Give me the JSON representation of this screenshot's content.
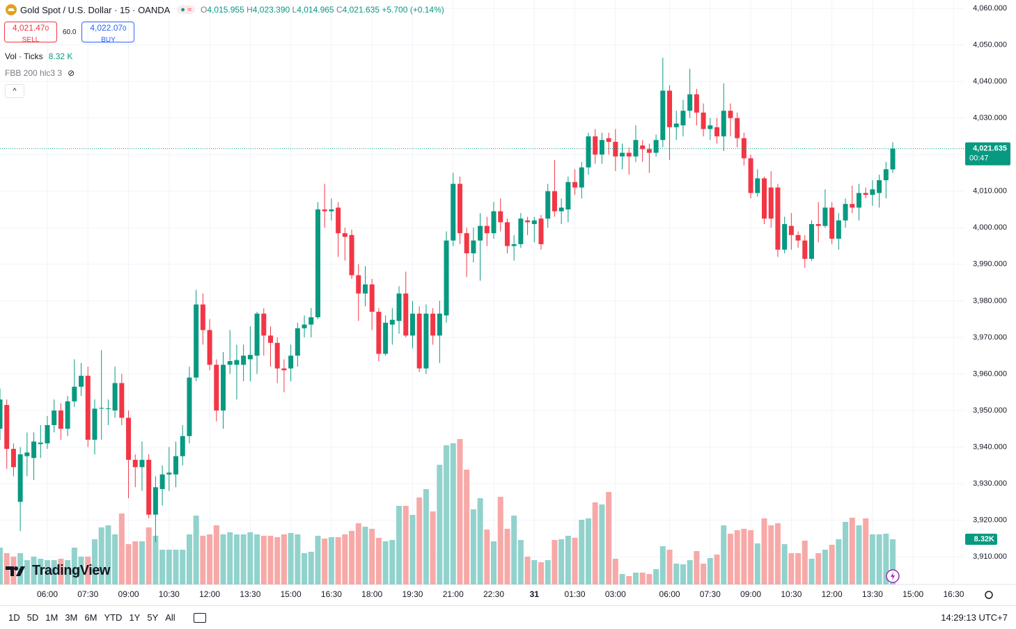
{
  "header": {
    "symbol": "Gold Spot / U.S. Dollar · 15 · OANDA",
    "ohlc": [
      {
        "label": "O",
        "value": "4,015.955"
      },
      {
        "label": "H",
        "value": "4,023.390"
      },
      {
        "label": "L",
        "value": "4,014.965"
      },
      {
        "label": "C",
        "value": "4,021.635"
      }
    ],
    "change": "+5.700 (+0.14%)",
    "sell": {
      "price": "4,021.47",
      "pip": "0",
      "label": "SELL"
    },
    "spread": "60.0",
    "buy": {
      "price": "4,022.07",
      "pip": "0",
      "label": "BUY"
    },
    "volume_indicator": {
      "name": "Vol · Ticks",
      "value": "8.32 K"
    },
    "bands_indicator": "FBB 200 hlc3 3",
    "logo": "TradingView"
  },
  "toolbar": {
    "ranges": [
      "1D",
      "5D",
      "1M",
      "3M",
      "6M",
      "YTD",
      "1Y",
      "5Y",
      "All"
    ],
    "clock": "14:29:13 UTC+7"
  },
  "chart_data": {
    "type": "candlestick",
    "up_color": "#089981",
    "down_color": "#f23645",
    "volume_up_color": "#92d2cc",
    "volume_down_color": "#f7a9a7",
    "grid": true,
    "xlim": [
      0,
      142.6
    ],
    "ylim": [
      3902.4,
      4062.3
    ],
    "xticks": [
      {
        "value": 7,
        "label": "06:00"
      },
      {
        "value": 13,
        "label": "07:30"
      },
      {
        "value": 19,
        "label": "09:00"
      },
      {
        "value": 25,
        "label": "10:30"
      },
      {
        "value": 31,
        "label": "12:00"
      },
      {
        "value": 37,
        "label": "13:30"
      },
      {
        "value": 43,
        "label": "15:00"
      },
      {
        "value": 49,
        "label": "16:30"
      },
      {
        "value": 55,
        "label": "18:00"
      },
      {
        "value": 61,
        "label": "19:30"
      },
      {
        "value": 67,
        "label": "21:00"
      },
      {
        "value": 73,
        "label": "22:30"
      },
      {
        "value": 79,
        "label": "31"
      },
      {
        "value": 85,
        "label": "01:30"
      },
      {
        "value": 91,
        "label": "03:00"
      },
      {
        "value": 99,
        "label": "06:00"
      },
      {
        "value": 105,
        "label": "07:30"
      },
      {
        "value": 111,
        "label": "09:00"
      },
      {
        "value": 117,
        "label": "10:30"
      },
      {
        "value": 123,
        "label": "12:00"
      },
      {
        "value": 129,
        "label": "13:30"
      },
      {
        "value": 135,
        "label": "15:00"
      },
      {
        "value": 141,
        "label": "16:30"
      }
    ],
    "yticks": [
      {
        "value": 3910,
        "label": "3,910.000"
      },
      {
        "value": 3920,
        "label": "3,920.000"
      },
      {
        "value": 3930,
        "label": "3,930.000"
      },
      {
        "value": 3940,
        "label": "3,940.000"
      },
      {
        "value": 3950,
        "label": "3,950.000"
      },
      {
        "value": 3960,
        "label": "3,960.000"
      },
      {
        "value": 3970,
        "label": "3,970.000"
      },
      {
        "value": 3980,
        "label": "3,980.000"
      },
      {
        "value": 3990,
        "label": "3,990.000"
      },
      {
        "value": 4000,
        "label": "4,000.000"
      },
      {
        "value": 4010,
        "label": "4,010.000"
      },
      {
        "value": 4020,
        "label": "4,020.000"
      },
      {
        "value": 4030,
        "label": "4,030.000"
      },
      {
        "value": 4040,
        "label": "4,040.000"
      },
      {
        "value": 4050,
        "label": "4,050.000"
      },
      {
        "value": 4060,
        "label": "4,060.000"
      }
    ],
    "last_price": {
      "value": 4021.635,
      "label": "4,021.635"
    },
    "countdown": "00:47",
    "volume_label": "8.32K",
    "open": [
      3945,
      3951.5,
      3939.5,
      3925,
      3937.5,
      3937,
      3940.8,
      3941,
      3946,
      3950,
      3945,
      3952.5,
      3956.5,
      3959.5,
      3942,
      3950.5,
      3950.4,
      3950,
      3957.5,
      3948,
      3936.5,
      3934.5,
      3936.5,
      3921.5,
      3928.5,
      3932.5,
      3932.5,
      3937.5,
      3943,
      3959,
      3979,
      3972,
      3962.5,
      3950,
      3962.5,
      3962.5,
      3962.5,
      3964,
      3965,
      3976.5,
      3970.5,
      3968.5,
      3961.5,
      3961.5,
      3965,
      3972.5,
      3973.5,
      3975.5,
      4005,
      4004.5,
      4005.5,
      3998.5,
      3998,
      3987,
      3982,
      3984.5,
      3977,
      3965.5,
      3973.5,
      3974.5,
      3982,
      3970.5,
      3976.5,
      3961.5,
      3976.5,
      3970.5,
      3976,
      3996.5,
      4012,
      3998.5,
      3993,
      3996.5,
      4000.5,
      3998.5,
      4004.5,
      4001.5,
      3995,
      3995.5,
      4002,
      4001,
      4002.5,
      4002.5,
      4010,
      4004.5,
      4005,
      4012.5,
      4011,
      4016.5,
      4025,
      4020,
      4024.5,
      4023.5,
      4019.5,
      4020.5,
      4019.5,
      4022.5,
      4021.5,
      4020.5,
      4024,
      4037.5,
      4027.5,
      4028,
      4032,
      4036.5,
      4031.5,
      4027,
      4027.5,
      4025,
      4032,
      4030,
      4024.5,
      4019,
      4009.5,
      4013.5,
      4011,
      4011,
      3994,
      4000.5,
      3998,
      3996.5,
      3991.5,
      4001,
      4000.5,
      4005.5,
      3997,
      4002,
      4006.5,
      4005.5,
      4009.5,
      4009,
      4009.5,
      4013,
      4015.955
    ],
    "high": [
      3956,
      3953,
      3941,
      3940,
      3944,
      3944,
      3946,
      3948.5,
      3953,
      3952,
      3954,
      3964,
      3963,
      3962,
      3953,
      3966.5,
      3953,
      3962,
      3960,
      3950,
      3938,
      3941.5,
      3938,
      3932,
      3935,
      3940,
      3941.5,
      3946,
      3962,
      3983,
      3982,
      3975,
      3964,
      3966,
      3972,
      3968,
      3968,
      3973,
      3977,
      3978,
      3973,
      3970,
      3964,
      3968,
      3974,
      3976,
      3978,
      4007,
      4012,
      4008,
      4007,
      4000,
      3999.5,
      3990,
      3989.5,
      3986,
      3978,
      3976,
      3978,
      3984,
      3988,
      3980,
      3978.5,
      3979,
      3978,
      3980,
      3999,
      4015,
      4014,
      4000,
      4000,
      4004,
      4003,
      4007,
      4008,
      4002.5,
      3998,
      4004,
      4003,
      4003,
      4003.5,
      4012,
      4018.5,
      4008,
      4014,
      4016,
      4018,
      4026,
      4027,
      4026,
      4026,
      4027,
      4023,
      4022,
      4028,
      4024,
      4023,
      4025.5,
      4046.5,
      4039,
      4032,
      4035,
      4043.5,
      4038,
      4034,
      4030,
      4030,
      4039.5,
      4034,
      4031.5,
      4026,
      4020,
      4016,
      4014,
      4015.5,
      4012,
      4003,
      4004,
      3999,
      3998,
      4002,
      4007,
      4010.5,
      4007,
      4004,
      4008,
      4011.5,
      4012,
      4011,
      4013,
      4014.5,
      4018,
      4023.39
    ],
    "low": [
      3942,
      3934,
      3932,
      3917,
      3932,
      3931,
      3937,
      3939.5,
      3944,
      3942,
      3943,
      3951,
      3954,
      3940,
      3938,
      3942,
      3946,
      3948,
      3946,
      3926,
      3929,
      3928,
      3920.5,
      3914,
      3924,
      3928,
      3929,
      3935,
      3941,
      3958,
      3968,
      3961,
      3947,
      3945,
      3960,
      3953,
      3958,
      3958,
      3960,
      3965,
      3962,
      3957.5,
      3955,
      3958,
      3962,
      3970,
      3970,
      3975,
      4000,
      4002,
      3992,
      3991,
      3986,
      3974.5,
      3978.5,
      3972,
      3963.5,
      3965,
      3968,
      3971,
      3970,
      3967,
      3960.5,
      3960,
      3968,
      3963,
      3974,
      3995,
      3995.5,
      3986.5,
      3990.5,
      3985.5,
      3995,
      3997,
      3999,
      3993,
      3991,
      3994.5,
      3998,
      3996,
      3994,
      4000,
      4003,
      4001,
      4001.5,
      4009,
      4008,
      4014.5,
      4017.5,
      4017.5,
      4020,
      4015.5,
      4016,
      4014.5,
      4018,
      4018,
      4015,
      4019.5,
      4022,
      4018.5,
      4024,
      4025,
      4030,
      4028,
      4025,
      4024,
      4023,
      4021,
      4025,
      4022,
      4017,
      4008,
      4008.5,
      4001,
      4000,
      3992,
      3993,
      3994,
      3994.5,
      3989,
      3991,
      3996,
      4000,
      3995.5,
      3994,
      4000,
      4004,
      4002,
      4008,
      4006,
      4005.5,
      4008,
      4014.965
    ],
    "close": [
      3953,
      3939.5,
      3934.5,
      3938,
      3938.5,
      3941.5,
      3941.2,
      3946,
      3950,
      3945,
      3952.5,
      3956.5,
      3959.5,
      3942,
      3950.5,
      3950.7,
      3950.6,
      3957.5,
      3948,
      3936.5,
      3934.5,
      3936.5,
      3921.5,
      3929,
      3932.5,
      3933,
      3937.5,
      3943,
      3959,
      3979,
      3972,
      3962.5,
      3950,
      3962.5,
      3963.5,
      3963.8,
      3965,
      3965.2,
      3976.5,
      3970.5,
      3968.5,
      3961.5,
      3961,
      3965,
      3972.5,
      3973.5,
      3975.5,
      4005,
      4004.5,
      4005,
      3998.5,
      3997.5,
      3987,
      3982,
      3984.5,
      3977,
      3965.5,
      3974,
      3974.8,
      3982,
      3970.5,
      3976.5,
      3961.5,
      3976.5,
      3970.5,
      3976.5,
      3996.5,
      4012,
      3998.5,
      3993,
      3996.5,
      4000.5,
      3998.5,
      4004.5,
      4001.5,
      3995,
      3995.5,
      4002.5,
      4001.5,
      4002,
      3995.5,
      4010,
      4004.5,
      4005.5,
      4012.5,
      4011,
      4016.5,
      4025,
      4020,
      4024,
      4023.5,
      4019.5,
      4020.5,
      4019.5,
      4024,
      4021.5,
      4020.5,
      4024,
      4037.5,
      4027.5,
      4028.5,
      4032,
      4036.5,
      4031.5,
      4027,
      4028,
      4025,
      4032,
      4030,
      4024.5,
      4019,
      4009.5,
      4013.5,
      4002.5,
      4002.5,
      3994,
      4001,
      3998,
      3996.5,
      3991.5,
      4001,
      4000.5,
      4005.5,
      3997,
      4002,
      4006.5,
      4005.5,
      4009.5,
      4009,
      4010.5,
      4013,
      4016,
      4021.635
    ],
    "volume": [
      6.78,
      5.76,
      5.12,
      5.76,
      4.48,
      5.12,
      4.74,
      4.48,
      4.48,
      4.74,
      4.48,
      6.78,
      5.12,
      5.12,
      8.32,
      10.5,
      10.88,
      9.22,
      13.06,
      7.42,
      7.94,
      7.94,
      10.5,
      8.96,
      6.4,
      6.4,
      6.4,
      6.4,
      9.22,
      12.67,
      8.96,
      9.22,
      10.88,
      9.22,
      9.6,
      9.22,
      9.22,
      9.6,
      9.22,
      8.96,
      8.96,
      8.7,
      9.22,
      9.47,
      9.22,
      5.76,
      6.02,
      8.96,
      8.45,
      8.7,
      8.7,
      9.22,
      9.86,
      11.26,
      10.62,
      10.24,
      8.58,
      7.94,
      8.19,
      14.46,
      14.46,
      12.8,
      16,
      17.54,
      13.44,
      22.02,
      25.6,
      25.98,
      26.75,
      21.12,
      13.82,
      15.87,
      10.11,
      7.94,
      16.13,
      10.24,
      12.67,
      8.19,
      5.12,
      4.48,
      4.1,
      4.48,
      8.19,
      8.32,
      8.96,
      8.58,
      11.9,
      12.16,
      15.1,
      14.72,
      17.02,
      4.74,
      1.92,
      1.54,
      2.18,
      2.18,
      1.92,
      2.82,
      7.04,
      6.4,
      3.84,
      3.71,
      4.48,
      6.14,
      3.84,
      4.86,
      5.5,
      10.88,
      9.34,
      9.98,
      10.24,
      9.98,
      7.55,
      12.16,
      10.88,
      11.26,
      7.42,
      5.76,
      5.76,
      8.06,
      4.74,
      5.76,
      6.4,
      7.3,
      8.32,
      11.52,
      12.29,
      10.88,
      12.16,
      9.22,
      9.22,
      9.34,
      8.32
    ]
  }
}
